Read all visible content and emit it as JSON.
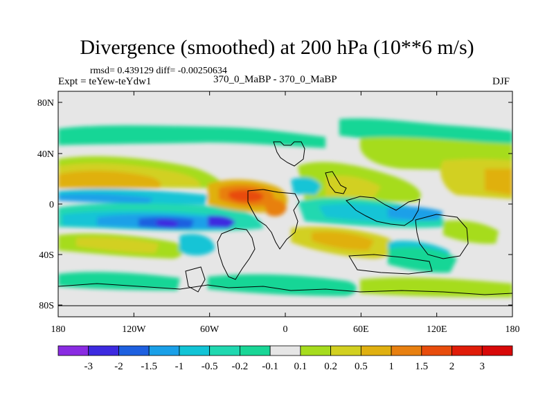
{
  "title": "Divergence (smoothed) at 200 hPa (10**6 m/s)",
  "stats": "rmsd= 0.439129 diff= -0.00250634",
  "experiment": "Expt = teYew-teYdw1",
  "comparison": "370_0_MaBP - 370_0_MaBP",
  "season": "DJF",
  "y_ticks": [
    "80N",
    "40N",
    "0",
    "40S",
    "80S"
  ],
  "x_ticks": [
    "180",
    "120W",
    "60W",
    "0",
    "60E",
    "120E",
    "180"
  ],
  "colorbar": {
    "labels": [
      "-3",
      "-2",
      "-1.5",
      "-1",
      "-0.5",
      "-0.2",
      "-0.1",
      "0.1",
      "0.2",
      "0.5",
      "1",
      "1.5",
      "2",
      "3"
    ],
    "colors": [
      "#8a2be2",
      "#3d2ae0",
      "#1e60e0",
      "#1aa0e8",
      "#12c4d6",
      "#20d8b0",
      "#19d696",
      "#e6e6e6",
      "#a6dc1e",
      "#d2d020",
      "#e0b010",
      "#e88010",
      "#e84c0c",
      "#e01c08",
      "#d80808"
    ]
  }
}
